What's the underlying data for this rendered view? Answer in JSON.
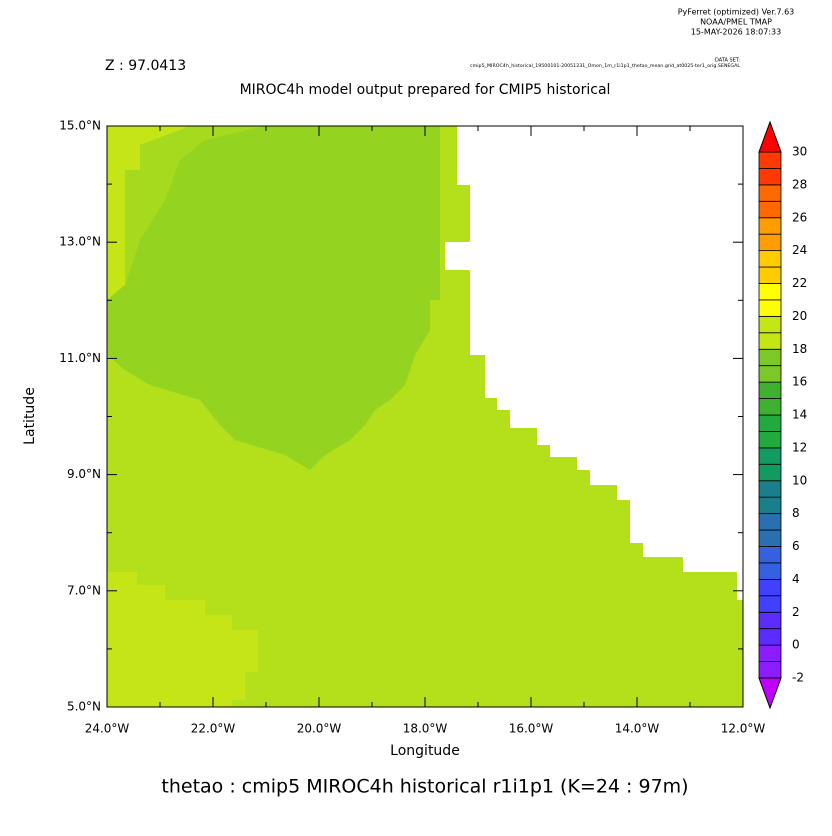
{
  "chart_data": {
    "type": "map",
    "header": [
      "PyFerret (optimized) Ver.7.63",
      "NOAA/PMEL TMAP",
      "15-MAY-2026 18:07:33"
    ],
    "dataset_label": "DATA SET:",
    "dataset": "cmip5_MIROC4h_historical_19500101-20051231_Omon_1m_r1i1p1_thetao_mean.grid_at0025-ter1_orig.SENEGAL",
    "z_label": "Z : 97.0413",
    "title": "MIROC4h model output prepared for CMIP5 historical",
    "x_label": "Longitude",
    "y_label": "Latitude",
    "caption": "thetao : cmip5 MIROC4h historical r1i1p1   (K=24 : 97m)",
    "xlim": [
      -24,
      -12
    ],
    "xticks": [
      {
        "value": -24,
        "label": "24.0°W"
      },
      {
        "value": -22,
        "label": "22.0°W"
      },
      {
        "value": -20,
        "label": "20.0°W"
      },
      {
        "value": -18,
        "label": "18.0°W"
      },
      {
        "value": -16,
        "label": "16.0°W"
      },
      {
        "value": -14,
        "label": "14.0°W"
      },
      {
        "value": -12,
        "label": "12.0°W"
      }
    ],
    "ylim": [
      5,
      15
    ],
    "yticks": [
      {
        "value": 5,
        "label": "5.0°N"
      },
      {
        "value": 7,
        "label": "7.0°N"
      },
      {
        "value": 9,
        "label": "9.0°N"
      },
      {
        "value": 11,
        "label": "11.0°N"
      },
      {
        "value": 13,
        "label": "13.0°N"
      },
      {
        "value": 15,
        "label": "15.0°N"
      }
    ],
    "colorbar": {
      "ticks": [
        -2,
        0,
        2,
        4,
        6,
        8,
        10,
        12,
        14,
        16,
        18,
        20,
        22,
        24,
        26,
        28,
        30
      ],
      "colors": [
        "#8a1cff",
        "#5a2cff",
        "#4040ff",
        "#3560e0",
        "#2a70b0",
        "#1a7f8a",
        "#129a60",
        "#22aa40",
        "#40b030",
        "#7cc828",
        "#c4e614",
        "#ffff00",
        "#ffcc00",
        "#ff9d00",
        "#ff6a00",
        "#ff3a00"
      ],
      "under_color": "#c000ff",
      "over_color": "#ff0000"
    }
  }
}
